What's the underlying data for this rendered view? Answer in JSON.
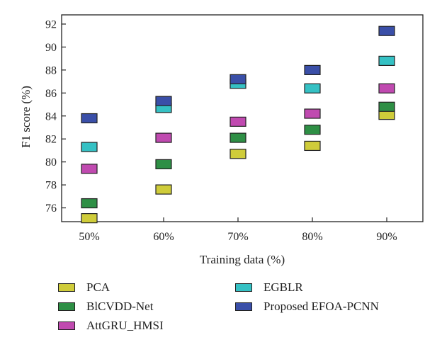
{
  "chart_data": {
    "type": "scatter",
    "xlabel": "Training data (%)",
    "ylabel": "F1 score (%)",
    "categories": [
      "50%",
      "60%",
      "70%",
      "80%",
      "90%"
    ],
    "ylim": [
      74.8,
      92.8
    ],
    "yticks": [
      76,
      78,
      80,
      82,
      84,
      86,
      88,
      90,
      92
    ],
    "grid": false,
    "legend_position": "bottom",
    "series": [
      {
        "name": "PCA",
        "color": "#cfcc3a",
        "values": [
          75.1,
          77.6,
          80.7,
          81.4,
          84.1
        ]
      },
      {
        "name": "BlCVDD-Net",
        "color": "#2e8f45",
        "values": [
          76.4,
          79.8,
          82.1,
          82.8,
          84.8
        ]
      },
      {
        "name": "AttGRU_HMSI",
        "color": "#c04ab0",
        "values": [
          79.4,
          82.1,
          83.5,
          84.2,
          86.4
        ]
      },
      {
        "name": "EGBLR",
        "color": "#35c1c4",
        "values": [
          81.3,
          84.7,
          86.8,
          86.4,
          88.8
        ]
      },
      {
        "name": "Proposed EFOA-PCNN",
        "color": "#3a4fa8",
        "values": [
          83.8,
          85.3,
          87.2,
          88.0,
          91.4
        ]
      }
    ]
  }
}
